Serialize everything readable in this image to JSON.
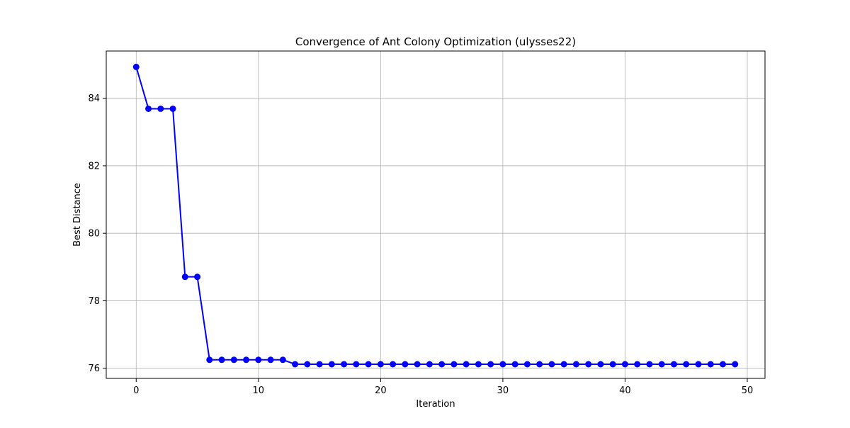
{
  "chart_data": {
    "type": "line",
    "title": "Convergence of Ant Colony Optimization (ulysses22)",
    "xlabel": "Iteration",
    "ylabel": "Best Distance",
    "xlim": [
      -2.45,
      51.45
    ],
    "ylim": [
      75.7,
      85.4
    ],
    "xticks": [
      0,
      10,
      20,
      30,
      40,
      50
    ],
    "yticks": [
      76,
      78,
      80,
      82,
      84
    ],
    "grid": true,
    "line_color": "#0000ff",
    "marker": "circle",
    "series": [
      {
        "x": [
          0,
          1,
          2,
          3,
          4,
          5,
          6,
          7,
          8,
          9,
          10,
          11,
          12,
          13,
          14,
          15,
          16,
          17,
          18,
          19,
          20,
          21,
          22,
          23,
          24,
          25,
          26,
          27,
          28,
          29,
          30,
          31,
          32,
          33,
          34,
          35,
          36,
          37,
          38,
          39,
          40,
          41,
          42,
          43,
          44,
          45,
          46,
          47,
          48,
          49
        ],
        "values": [
          84.93,
          83.69,
          83.69,
          83.69,
          78.71,
          78.71,
          76.25,
          76.25,
          76.25,
          76.25,
          76.25,
          76.25,
          76.25,
          76.12,
          76.12,
          76.12,
          76.12,
          76.12,
          76.12,
          76.12,
          76.12,
          76.12,
          76.12,
          76.12,
          76.12,
          76.12,
          76.12,
          76.12,
          76.12,
          76.12,
          76.12,
          76.12,
          76.12,
          76.12,
          76.12,
          76.12,
          76.12,
          76.12,
          76.12,
          76.12,
          76.12,
          76.12,
          76.12,
          76.12,
          76.12,
          76.12,
          76.12,
          76.12,
          76.12,
          76.12
        ]
      }
    ]
  }
}
